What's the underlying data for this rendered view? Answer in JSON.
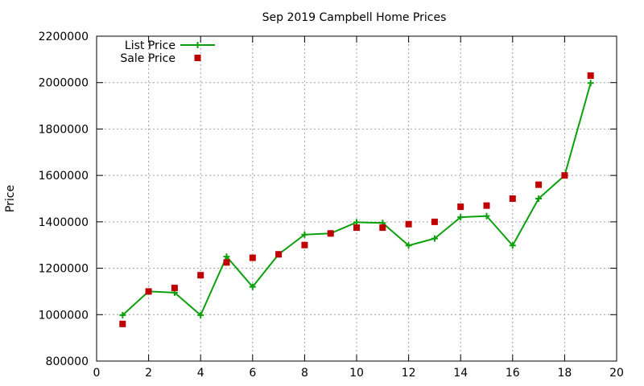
{
  "chart_data": {
    "type": "line",
    "title": "Sep 2019 Campbell Home Prices",
    "xlabel": "",
    "ylabel": "Price",
    "xlim": [
      0,
      20
    ],
    "ylim": [
      800000,
      2200000
    ],
    "x_ticks": [
      "0",
      "2",
      "4",
      "6",
      "8",
      "10",
      "12",
      "14",
      "16",
      "18",
      "20"
    ],
    "y_ticks": [
      "800000",
      "1000000",
      "1200000",
      "1400000",
      "1600000",
      "1800000",
      "2000000",
      "2200000"
    ],
    "grid": true,
    "legend_position": "top-left",
    "series": [
      {
        "name": "List Price",
        "style": "line-with-plus-markers",
        "color": "#0ca00c",
        "x": [
          1,
          2,
          3,
          4,
          5,
          6,
          7,
          8,
          9,
          10,
          11,
          12,
          13,
          14,
          15,
          16,
          17,
          18,
          19
        ],
        "values": [
          998000,
          1100000,
          1095000,
          998000,
          1250000,
          1120000,
          1260000,
          1345000,
          1350000,
          1398000,
          1395000,
          1298000,
          1328000,
          1420000,
          1425000,
          1298000,
          1500000,
          1600000,
          1998000
        ]
      },
      {
        "name": "Sale Price",
        "style": "square-markers",
        "color": "#c00000",
        "x": [
          1,
          2,
          3,
          4,
          5,
          6,
          7,
          8,
          9,
          10,
          11,
          12,
          13,
          14,
          15,
          16,
          17,
          18,
          19
        ],
        "values": [
          960000,
          1100000,
          1115000,
          1170000,
          1225000,
          1245000,
          1260000,
          1300000,
          1350000,
          1375000,
          1375000,
          1390000,
          1400000,
          1465000,
          1470000,
          1500000,
          1560000,
          1600000,
          2030000
        ]
      }
    ]
  }
}
